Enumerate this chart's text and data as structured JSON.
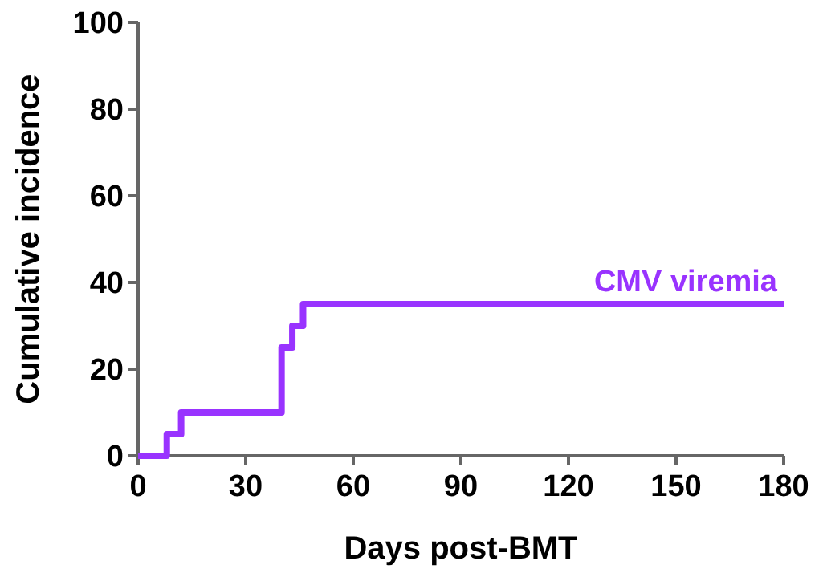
{
  "chart_data": {
    "type": "step",
    "xlabel": "Days post-BMT",
    "ylabel": "Cumulative incidence",
    "xlim": [
      0,
      180
    ],
    "xticks": [
      0,
      30,
      60,
      90,
      120,
      150,
      180
    ],
    "ylim": [
      0,
      100
    ],
    "yticks": [
      0,
      20,
      40,
      60,
      80,
      100
    ],
    "series": [
      {
        "name": "CMV viremia",
        "color": "#9933ff",
        "x": [
          0,
          8,
          12,
          40,
          43,
          46,
          180
        ],
        "values": [
          0,
          5,
          10,
          25,
          30,
          35,
          35
        ]
      }
    ]
  }
}
